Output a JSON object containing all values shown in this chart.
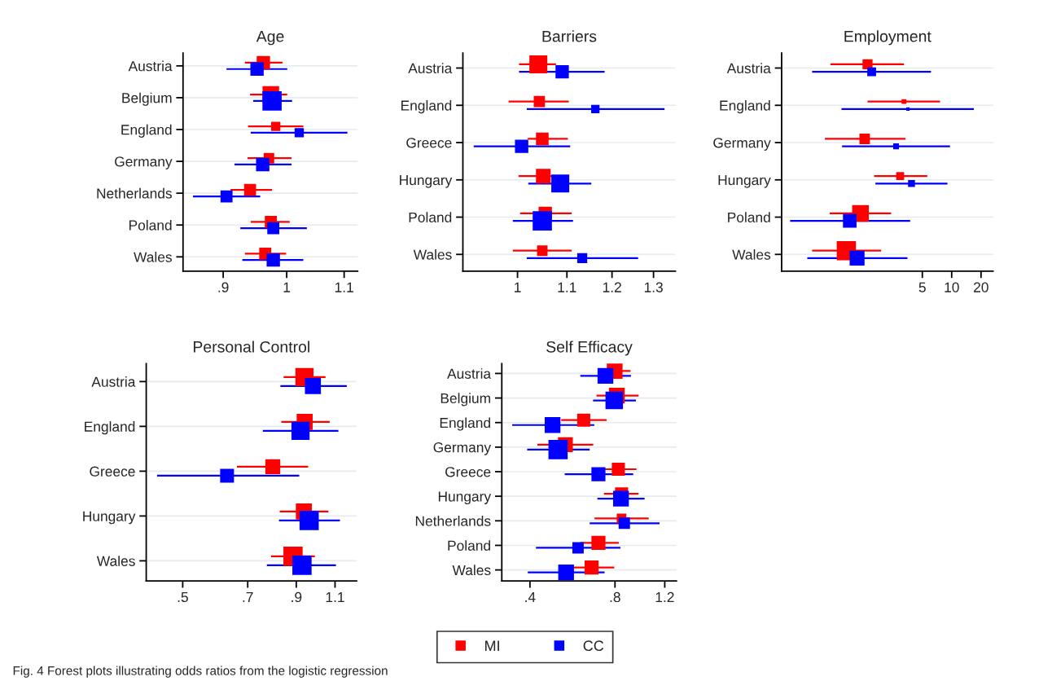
{
  "chart_data": [
    {
      "type": "bubble",
      "title": "Age",
      "orientation": "horizontal",
      "log": "x",
      "grid": "y",
      "legend": "bottom",
      "marker": "square",
      "categories": [
        "Austria",
        "Belgium",
        "England",
        "Germany",
        "Netherlands",
        "Poland",
        "Wales"
      ],
      "xlim": [
        0.842,
        1.125
      ],
      "xticks": [
        {
          "value": 0.9,
          "label": ".9"
        },
        1,
        1.1
      ],
      "series": [
        {
          "name": "MI",
          "color": "#ff0000",
          "values": [
            0.962,
            0.974,
            0.982,
            0.971,
            0.941,
            0.974,
            0.965
          ],
          "errors": [
            [
              0.933,
              0.993
            ],
            [
              0.941,
              1.001
            ],
            [
              0.938,
              1.028
            ],
            [
              0.937,
              1.008
            ],
            [
              0.911,
              0.976
            ],
            [
              0.942,
              1.005
            ],
            [
              0.933,
              0.999
            ]
          ],
          "sizes": [
            0.48,
            0.74,
            0.23,
            0.3,
            0.39,
            0.39,
            0.39
          ]
        },
        {
          "name": "CC",
          "color": "#0000ff",
          "values": [
            0.952,
            0.976,
            1.021,
            0.961,
            0.905,
            0.978,
            0.978
          ],
          "errors": [
            [
              0.905,
              1.001
            ],
            [
              0.946,
              1.009
            ],
            [
              0.942,
              1.106
            ],
            [
              0.917,
              1.008
            ],
            [
              0.856,
              0.957
            ],
            [
              0.926,
              1.034
            ],
            [
              0.929,
              1.028
            ]
          ],
          "sizes": [
            0.48,
            1,
            0.23,
            0.48,
            0.39,
            0.39,
            0.48
          ]
        }
      ]
    },
    {
      "type": "bubble",
      "title": "Barriers",
      "orientation": "horizontal",
      "log": "x",
      "grid": "y",
      "legend": false,
      "marker": "square",
      "categories": [
        "Austria",
        "England",
        "Greece",
        "Hungary",
        "Poland",
        "Wales"
      ],
      "xlim": [
        0.9,
        1.356
      ],
      "xticks": [
        1,
        1.1,
        1.2,
        1.3
      ],
      "series": [
        {
          "color": "#ff0000",
          "values": [
            1.041,
            1.043,
            1.049,
            1.051,
            1.055,
            1.049
          ],
          "errors": [
            [
              1.003,
              1.077
            ],
            [
              0.983,
              1.104
            ],
            [
              1.02,
              1.102
            ],
            [
              1.002,
              1.105
            ],
            [
              1.005,
              1.11
            ],
            [
              0.991,
              1.11
            ]
          ],
          "sizes": [
            0.87,
            0.34,
            0.43,
            0.58,
            0.48,
            0.3
          ]
        },
        {
          "color": "#0000ff",
          "values": [
            1.09,
            1.162,
            1.008,
            1.086,
            1.049,
            1.133
          ],
          "errors": [
            [
              1.003,
              1.183
            ],
            [
              1.018,
              1.328
            ],
            [
              0.919,
              1.107
            ],
            [
              1.021,
              1.153
            ],
            [
              0.991,
              1.113
            ],
            [
              1.018,
              1.262
            ]
          ],
          "sizes": [
            0.48,
            0.19,
            0.48,
            0.87,
            1,
            0.27
          ]
        }
      ]
    },
    {
      "type": "bubble",
      "title": "Employment",
      "orientation": "horizontal",
      "log": "x",
      "grid": "y",
      "legend": false,
      "marker": "square",
      "categories": [
        "Austria",
        "England",
        "Germany",
        "Hungary",
        "Poland",
        "Wales"
      ],
      "xlim": [
        0.18,
        26.6
      ],
      "xticks": [
        5,
        10,
        20
      ],
      "series": [
        {
          "color": "#ff0000",
          "values": [
            1.37,
            3.24,
            1.28,
            2.96,
            1.16,
            0.83
          ],
          "errors": [
            [
              0.57,
              3.24
            ],
            [
              1.37,
              7.59
            ],
            [
              0.5,
              3.36
            ],
            [
              1.6,
              5.62
            ],
            [
              0.56,
              2.39
            ],
            [
              0.37,
              1.89
            ]
          ],
          "sizes": [
            0.27,
            0.06,
            0.3,
            0.17,
            0.75,
            1
          ]
        },
        {
          "color": "#0000ff",
          "values": [
            1.51,
            3.56,
            2.69,
            3.87,
            0.9,
            1.07
          ],
          "errors": [
            [
              0.37,
              6.13
            ],
            [
              0.74,
              16.9
            ],
            [
              0.75,
              9.61
            ],
            [
              1.65,
              9.05
            ],
            [
              0.22,
              3.75
            ],
            [
              0.33,
              3.52
            ]
          ],
          "sizes": [
            0.21,
            0.03,
            0.09,
            0.13,
            0.5,
            0.6
          ]
        }
      ]
    },
    {
      "type": "bubble",
      "title": "Personal Control",
      "orientation": "horizontal",
      "log": "x",
      "grid": "y",
      "legend": false,
      "marker": "square",
      "categories": [
        "Austria",
        "England",
        "Greece",
        "Hungary",
        "Wales"
      ],
      "xlim": [
        0.414,
        1.23
      ],
      "xticks": [
        {
          "value": 0.5,
          "label": ".5"
        },
        {
          "value": 0.7,
          "label": ".7"
        },
        {
          "value": 0.9,
          "label": ".9"
        },
        1.1
      ],
      "series": [
        {
          "color": "#ff0000",
          "values": [
            0.939,
            0.94,
            0.797,
            0.936,
            0.885
          ],
          "errors": [
            [
              0.843,
              1.047
            ],
            [
              0.833,
              1.07
            ],
            [
              0.662,
              0.957
            ],
            [
              0.826,
              1.063
            ],
            [
              0.79,
              0.991
            ]
          ],
          "sizes": [
            0.89,
            0.69,
            0.6,
            0.69,
            1
          ]
        },
        {
          "color": "#0000ff",
          "values": [
            0.981,
            0.92,
            0.629,
            0.962,
            0.927
          ],
          "errors": [
            [
              0.829,
              1.169
            ],
            [
              0.757,
              1.119
            ],
            [
              0.438,
              0.914
            ],
            [
              0.823,
              1.128
            ],
            [
              0.773,
              1.105
            ]
          ],
          "sizes": [
            0.69,
            0.89,
            0.52,
            1,
            1
          ]
        }
      ]
    },
    {
      "type": "bubble",
      "title": "Self Efficacy",
      "orientation": "horizontal",
      "log": "x",
      "grid": "y",
      "legend": false,
      "marker": "square",
      "categories": [
        "Austria",
        "Belgium",
        "England",
        "Germany",
        "Greece",
        "Hungary",
        "Netherlands",
        "Poland",
        "Wales"
      ],
      "xlim": [
        0.318,
        1.32
      ],
      "xticks": [
        {
          "value": 0.4,
          "label": ".4"
        },
        {
          "value": 0.8,
          "label": ".8"
        },
        1.2
      ],
      "annotations": [
        "Fig. 4 Forest plots illustrating odds ratios from the logistic regression"
      ],
      "series": [
        {
          "color": "#ff0000",
          "values": [
            0.798,
            0.812,
            0.62,
            0.534,
            0.822,
            0.844,
            0.844,
            0.699,
            0.661
          ],
          "errors": [
            [
              0.7,
              0.908
            ],
            [
              0.688,
              0.97
            ],
            [
              0.516,
              0.747
            ],
            [
              0.425,
              0.67
            ],
            [
              0.724,
              0.953
            ],
            [
              0.731,
              0.97
            ],
            [
              0.677,
              1.053
            ],
            [
              0.603,
              0.825
            ],
            [
              0.558,
              0.795
            ]
          ],
          "sizes": [
            0.67,
            0.67,
            0.46,
            0.6,
            0.46,
            0.46,
            0.25,
            0.53,
            0.53
          ]
        },
        {
          "color": "#0000ff",
          "values": [
            0.74,
            0.795,
            0.481,
            0.503,
            0.699,
            0.84,
            0.863,
            0.592,
            0.537
          ],
          "errors": [
            [
              0.603,
              0.911
            ],
            [
              0.669,
              0.949
            ],
            [
              0.346,
              0.676
            ],
            [
              0.391,
              0.651
            ],
            [
              0.531,
              0.928
            ],
            [
              0.693,
              1.018
            ],
            [
              0.651,
              1.15
            ],
            [
              0.42,
              0.836
            ],
            [
              0.393,
              0.735
            ]
          ],
          "sizes": [
            0.67,
            0.83,
            0.67,
            1,
            0.53,
            0.67,
            0.35,
            0.35,
            0.67
          ]
        }
      ]
    }
  ]
}
